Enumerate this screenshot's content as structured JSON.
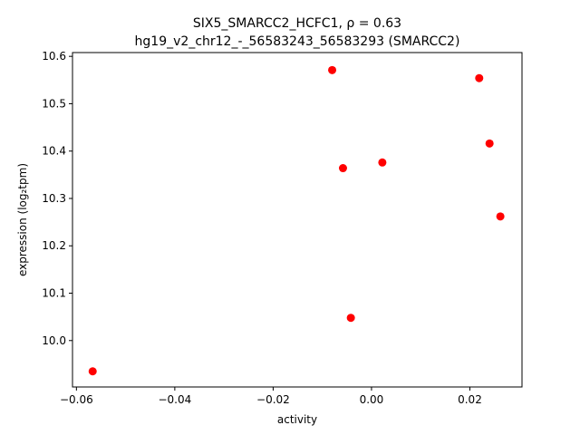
{
  "chart_data": {
    "type": "scatter",
    "title_line1": "SIX5_SMARCC2_HCFC1, ρ = 0.63",
    "title_line2": "hg19_v2_chr12_-_56583243_56583293 (SMARCC2)",
    "xlabel": "activity",
    "ylabel": "expression (log₂tpm)",
    "xlim": [
      -0.0608,
      0.0306
    ],
    "ylim": [
      9.902,
      10.608
    ],
    "xticks": [
      -0.06,
      -0.04,
      -0.02,
      0.0,
      0.02
    ],
    "xtick_labels": [
      "−0.06",
      "−0.04",
      "−0.02",
      "0.00",
      "0.02"
    ],
    "yticks": [
      10.0,
      10.1,
      10.2,
      10.3,
      10.4,
      10.5,
      10.6
    ],
    "ytick_labels": [
      "10.0",
      "10.1",
      "10.2",
      "10.3",
      "10.4",
      "10.5",
      "10.6"
    ],
    "grid": false,
    "marker_color": "#ff0000",
    "points": [
      {
        "x": -0.0567,
        "y": 9.935
      },
      {
        "x": -0.008,
        "y": 10.571
      },
      {
        "x": -0.0058,
        "y": 10.364
      },
      {
        "x": -0.0042,
        "y": 10.048
      },
      {
        "x": 0.0022,
        "y": 10.376
      },
      {
        "x": 0.0219,
        "y": 10.554
      },
      {
        "x": 0.024,
        "y": 10.416
      },
      {
        "x": 0.0262,
        "y": 10.262
      }
    ]
  }
}
